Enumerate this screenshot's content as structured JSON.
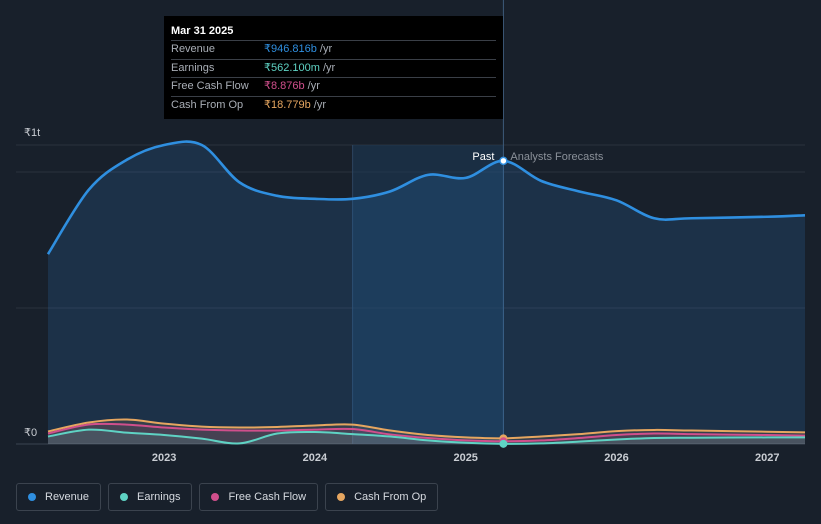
{
  "tooltip": {
    "date": "Mar 31 2025",
    "rows": [
      {
        "label": "Revenue",
        "value": "₹946.816b",
        "unit": "/yr",
        "color": "#2f8fe0"
      },
      {
        "label": "Earnings",
        "value": "₹562.100m",
        "unit": "/yr",
        "color": "#5fd3c4"
      },
      {
        "label": "Free Cash Flow",
        "value": "₹8.876b",
        "unit": "/yr",
        "color": "#d04f8c"
      },
      {
        "label": "Cash From Op",
        "value": "₹18.779b",
        "unit": "/yr",
        "color": "#e6a660"
      }
    ]
  },
  "divider_labels": {
    "past": "Past",
    "forecast": "Analysts Forecasts"
  },
  "legend": [
    {
      "label": "Revenue",
      "color": "#2f8fe0"
    },
    {
      "label": "Earnings",
      "color": "#5fd3c4"
    },
    {
      "label": "Free Cash Flow",
      "color": "#d04f8c"
    },
    {
      "label": "Cash From Op",
      "color": "#e6a660"
    }
  ],
  "chart_data": {
    "type": "line",
    "y_unit": "INR",
    "ylim": [
      0,
      1000
    ],
    "y_tick_labels": [
      "₹1t",
      "₹0"
    ],
    "x_tick_labels": [
      "2023",
      "2024",
      "2025",
      "2026",
      "2027"
    ],
    "xlim": [
      2022.23,
      2027.25
    ],
    "past_end": 2025.25,
    "highlight_start": 2024.25,
    "series": [
      {
        "name": "Revenue",
        "color": "#2f8fe0",
        "x": [
          2022.23,
          2022.5,
          2022.75,
          2023.0,
          2023.25,
          2023.5,
          2023.75,
          2024.0,
          2024.25,
          2024.5,
          2024.75,
          2025.0,
          2025.25,
          2025.5,
          2025.75,
          2026.0,
          2026.25,
          2026.5,
          2027.0,
          2027.25
        ],
        "y": [
          635,
          850,
          950,
          1000,
          1000,
          875,
          830,
          820,
          820,
          845,
          900,
          890,
          947,
          880,
          845,
          815,
          755,
          755,
          760,
          765
        ]
      },
      {
        "name": "Earnings",
        "color": "#5fd3c4",
        "x": [
          2022.23,
          2022.5,
          2022.75,
          2023.0,
          2023.25,
          2023.5,
          2023.75,
          2024.0,
          2024.25,
          2024.5,
          2024.75,
          2025.0,
          2025.25,
          2025.5,
          2025.75,
          2026.0,
          2026.25,
          2026.5,
          2027.0,
          2027.25
        ],
        "y": [
          25,
          48,
          38,
          30,
          18,
          2,
          35,
          40,
          33,
          25,
          12,
          4,
          0.56,
          2,
          8,
          15,
          20,
          21,
          22,
          22
        ]
      },
      {
        "name": "Free Cash Flow",
        "color": "#d04f8c",
        "x": [
          2022.23,
          2022.5,
          2022.75,
          2023.0,
          2023.25,
          2023.5,
          2023.75,
          2024.0,
          2024.25,
          2024.5,
          2024.75,
          2025.0,
          2025.25,
          2025.5,
          2025.75,
          2026.0,
          2026.25,
          2026.5,
          2027.0,
          2027.25
        ],
        "y": [
          35,
          65,
          65,
          55,
          48,
          45,
          45,
          48,
          50,
          32,
          20,
          12,
          9,
          12,
          20,
          30,
          35,
          33,
          30,
          28
        ]
      },
      {
        "name": "Cash From Op",
        "color": "#e6a660",
        "x": [
          2022.23,
          2022.5,
          2022.75,
          2023.0,
          2023.25,
          2023.5,
          2023.75,
          2024.0,
          2024.25,
          2024.5,
          2024.75,
          2025.0,
          2025.25,
          2025.5,
          2025.75,
          2026.0,
          2026.25,
          2026.5,
          2027.0,
          2027.25
        ],
        "y": [
          42,
          72,
          82,
          68,
          58,
          55,
          57,
          62,
          65,
          45,
          30,
          22,
          19,
          25,
          33,
          43,
          47,
          45,
          41,
          39
        ]
      }
    ]
  }
}
